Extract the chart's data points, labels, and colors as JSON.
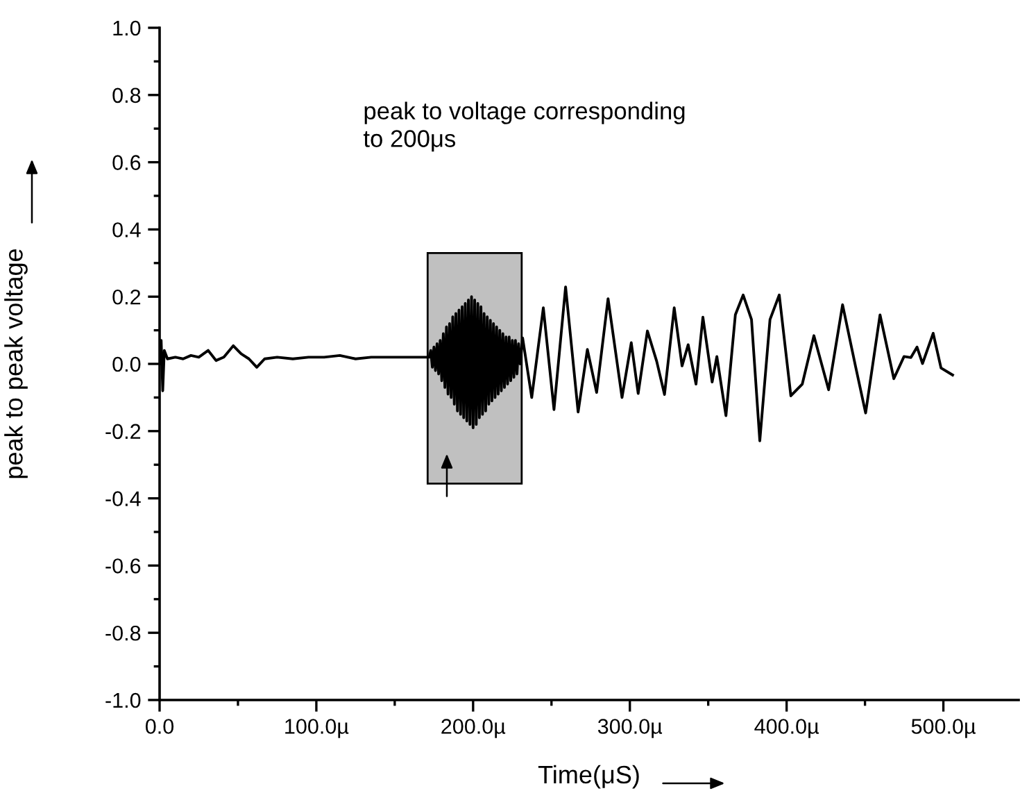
{
  "chart_data": {
    "type": "line",
    "xlabel": "Time(μS)",
    "ylabel": "peak to peak voltage",
    "annotations": [
      "peak to voltage corresponding\nto 200μs"
    ],
    "x": [
      0,
      1,
      2,
      3,
      5,
      10,
      15,
      20,
      25,
      31,
      36,
      41,
      47,
      52,
      57,
      62,
      67,
      75,
      85,
      95,
      105,
      115,
      125,
      135,
      145,
      155,
      165,
      172,
      173,
      174,
      175,
      176,
      177,
      178,
      179,
      180,
      181,
      182,
      183,
      184,
      185,
      186,
      187,
      188,
      189,
      190,
      191,
      192,
      193,
      194,
      195,
      196,
      197,
      198,
      199,
      200,
      201,
      202,
      203,
      204,
      205,
      206,
      207,
      208,
      209,
      210,
      211,
      212,
      213,
      214,
      215,
      216,
      217,
      218,
      219,
      220,
      221,
      222,
      223,
      224,
      225,
      226,
      227,
      228,
      229,
      230,
      231.6,
      237.4,
      244.8,
      251.6,
      259,
      267,
      272.9,
      278.8,
      286.1,
      295,
      300.9,
      305.3,
      311.2,
      317.1,
      322.1,
      328.3,
      333.3,
      337.2,
      342.2,
      346.6,
      352.5,
      355.5,
      361.3,
      367.3,
      372.3,
      377.6,
      382.9,
      389.4,
      395.3,
      402.7,
      410,
      417.4,
      426.8,
      435.7,
      443.9,
      450.4,
      459.6,
      468.4,
      474.9,
      479.3,
      483.2,
      486.7,
      493.5,
      498.5,
      505.9
    ],
    "series": [
      {
        "color": "#000000",
        "values": [
          0.0,
          0.07,
          -0.08,
          0.04,
          0.015,
          0.02,
          0.015,
          0.025,
          0.02,
          0.04,
          0.01,
          0.02,
          0.054,
          0.03,
          0.015,
          -0.01,
          0.015,
          0.02,
          0.015,
          0.02,
          0.02,
          0.025,
          0.015,
          0.02,
          0.02,
          0.02,
          0.02,
          0.02,
          0.04,
          -0.01,
          0.05,
          -0.02,
          0.06,
          -0.03,
          0.07,
          -0.05,
          0.09,
          -0.07,
          0.11,
          -0.09,
          0.12,
          -0.1,
          0.14,
          -0.12,
          0.15,
          -0.14,
          0.16,
          -0.15,
          0.17,
          -0.16,
          0.18,
          -0.17,
          0.19,
          -0.18,
          0.2,
          -0.19,
          0.19,
          -0.18,
          0.18,
          -0.16,
          0.17,
          -0.15,
          0.15,
          -0.14,
          0.14,
          -0.12,
          0.13,
          -0.11,
          0.12,
          -0.1,
          0.11,
          -0.09,
          0.1,
          -0.08,
          0.09,
          -0.07,
          0.08,
          -0.06,
          0.08,
          -0.05,
          0.07,
          -0.04,
          0.07,
          -0.03,
          0.06,
          0.0,
          0.077,
          -0.1,
          0.167,
          -0.136,
          0.229,
          -0.143,
          0.043,
          -0.085,
          0.194,
          -0.1,
          0.063,
          -0.088,
          0.098,
          0.008,
          -0.091,
          0.167,
          -0.006,
          0.057,
          -0.06,
          0.139,
          -0.054,
          0.022,
          -0.154,
          0.146,
          0.205,
          0.132,
          -0.229,
          0.132,
          0.205,
          -0.095,
          -0.06,
          0.084,
          -0.077,
          0.176,
          -0.006,
          -0.146,
          0.146,
          -0.044,
          0.022,
          0.019,
          0.05,
          0.001,
          0.091,
          -0.012,
          -0.033
        ]
      }
    ],
    "bands": [
      {
        "axis": "x",
        "from": 171,
        "to": 231,
        "color": "#c0c0c0"
      }
    ],
    "xlim": [
      0,
      548
    ],
    "xticks": [
      {
        "value": 0,
        "label": "0.0"
      },
      {
        "value": 50,
        "label": null
      },
      {
        "value": 100,
        "label": "100.0µ"
      },
      {
        "value": 150,
        "label": null
      },
      {
        "value": 200,
        "label": "200.0µ"
      },
      {
        "value": 250,
        "label": null
      },
      {
        "value": 300,
        "label": "300.0µ"
      },
      {
        "value": 350,
        "label": null
      },
      {
        "value": 400,
        "label": "400.0µ"
      },
      {
        "value": 450,
        "label": null
      },
      {
        "value": 500,
        "label": "500.0µ"
      }
    ],
    "ylim": [
      -1,
      1
    ],
    "yticks": [
      {
        "value": -1,
        "label": "-1.0"
      },
      {
        "value": -0.9,
        "label": null
      },
      {
        "value": -0.8,
        "label": "-0.8"
      },
      {
        "value": -0.7,
        "label": null
      },
      {
        "value": -0.6,
        "label": "-0.6"
      },
      {
        "value": -0.5,
        "label": null
      },
      {
        "value": -0.4,
        "label": "-0.4"
      },
      {
        "value": -0.3,
        "label": null
      },
      {
        "value": -0.2,
        "label": "-0.2"
      },
      {
        "value": -0.1,
        "label": null
      },
      {
        "value": 0,
        "label": "0.0"
      },
      {
        "value": 0.1,
        "label": null
      },
      {
        "value": 0.2,
        "label": "0.2"
      },
      {
        "value": 0.3,
        "label": null
      },
      {
        "value": 0.4,
        "label": "0.4"
      },
      {
        "value": 0.5,
        "label": null
      },
      {
        "value": 0.6,
        "label": "0.6"
      },
      {
        "value": 0.7,
        "label": null
      },
      {
        "value": 0.8,
        "label": "0.8"
      },
      {
        "value": 0.9,
        "label": null
      },
      {
        "value": 1,
        "label": "1.0"
      }
    ],
    "grid": false,
    "legend": false
  }
}
